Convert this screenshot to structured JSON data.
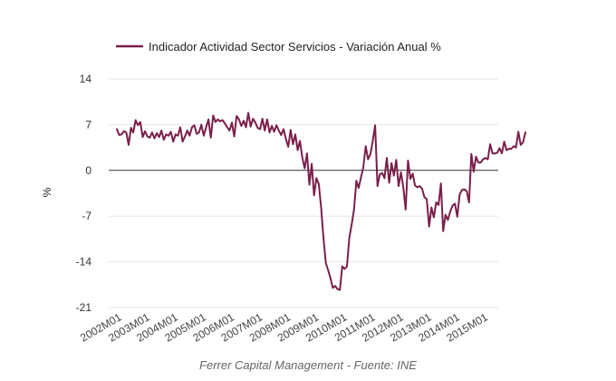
{
  "chart_data": {
    "type": "line",
    "legend_position": "top",
    "grid": true,
    "ylabel": "%",
    "ylim": [
      -21,
      14
    ],
    "yticks": [
      "14",
      "7",
      "0",
      "-7",
      "-14",
      "-21"
    ],
    "x_tick_labels": [
      "2002M01",
      "2003M01",
      "2004M01",
      "2005M01",
      "2006M01",
      "2007M01",
      "2008M01",
      "2009M01",
      "2010M01",
      "2011M01",
      "2012M01",
      "2013M01",
      "2014M01",
      "2015M01"
    ],
    "footer": "Ferrer Capital Management - Fuente: INE",
    "series": [
      {
        "name": "Indicador Actividad Sector Servicios - Variación Anual %",
        "color": "#7a1f4a",
        "x_start": "2002M01",
        "frequency": "monthly",
        "values": [
          6.3,
          5.4,
          5.5,
          6.0,
          5.8,
          3.9,
          6.5,
          5.8,
          7.7,
          6.9,
          7.4,
          5.1,
          6.0,
          5.2,
          5.0,
          5.8,
          4.9,
          5.7,
          5.1,
          6.1,
          4.7,
          5.5,
          5.3,
          5.9,
          4.4,
          5.5,
          5.3,
          6.6,
          4.4,
          5.2,
          6.1,
          5.3,
          6.6,
          6.9,
          5.6,
          5.8,
          7.0,
          5.3,
          6.6,
          7.8,
          5.0,
          8.4,
          7.4,
          7.8,
          7.5,
          7.7,
          7.2,
          6.6,
          6.1,
          7.3,
          5.2,
          8.3,
          7.8,
          6.8,
          7.6,
          6.6,
          8.8,
          6.7,
          7.9,
          7.3,
          6.5,
          6.3,
          7.9,
          6.1,
          7.8,
          5.8,
          6.8,
          5.9,
          6.9,
          6.1,
          5.4,
          6.3,
          4.8,
          3.6,
          6.2,
          4.0,
          5.5,
          3.1,
          4.5,
          2.0,
          0.3,
          2.6,
          -2.2,
          1.0,
          -3.8,
          -1.2,
          -2.1,
          -5.7,
          -10.4,
          -14.2,
          -15.3,
          -16.5,
          -18.0,
          -17.7,
          -18.2,
          -18.3,
          -14.7,
          -15.1,
          -14.7,
          -10.3,
          -8.3,
          -6.0,
          -1.6,
          -2.7,
          -1.1,
          0.5,
          3.7,
          1.7,
          2.5,
          4.5,
          6.9,
          -2.4,
          -0.6,
          -0.4,
          -1.2,
          1.9,
          -1.9,
          1.1,
          -0.8,
          1.6,
          -2.4,
          -0.3,
          -2.6,
          -6.0,
          1.5,
          -1.3,
          -0.5,
          -2.3,
          -2.6,
          -2.4,
          -2.8,
          -4.1,
          -4.4,
          -8.6,
          -5.7,
          -7.2,
          -4.9,
          -5.3,
          -2.0,
          -9.3,
          -6.8,
          -7.6,
          -6.3,
          -5.4,
          -5.1,
          -7.1,
          -3.7,
          -3.0,
          -2.9,
          -3.2,
          -4.9,
          2.5,
          -0.2,
          2.1,
          1.2,
          1.2,
          1.7,
          1.9,
          1.7,
          4.0,
          2.6,
          2.6,
          2.7,
          3.4,
          2.6,
          4.4,
          3.1,
          3.3,
          3.3,
          3.7,
          3.5,
          5.9,
          3.9,
          4.3,
          5.8
        ]
      }
    ]
  }
}
